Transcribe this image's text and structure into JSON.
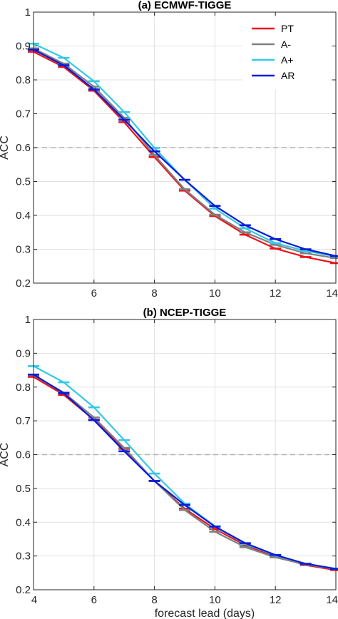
{
  "chart_data": [
    {
      "type": "line",
      "title": "(a) ECMWF-TIGGE",
      "xlabel": "",
      "ylabel": "ACC",
      "xlim": [
        4,
        14
      ],
      "ylim": [
        0.2,
        1.0
      ],
      "xticks": [
        4,
        6,
        8,
        10,
        12,
        14
      ],
      "xtick_labels": [
        "",
        "6",
        "8",
        "10",
        "12",
        "14"
      ],
      "yticks": [
        0.2,
        0.3,
        0.4,
        0.5,
        0.6,
        0.7,
        0.8,
        0.9,
        1.0
      ],
      "ytick_labels": [
        "0.2",
        "0.3",
        "0.4",
        "0.5",
        "0.6",
        "0.7",
        "0.8",
        "0.9",
        "1"
      ],
      "reference_line": 0.6,
      "grid": true,
      "legend": "top-right",
      "x": [
        4,
        5,
        6,
        7,
        8,
        9,
        10,
        11,
        12,
        13,
        14
      ],
      "series": [
        {
          "name": "PT",
          "color": "#e8151b",
          "values": [
            0.883,
            0.838,
            0.768,
            0.675,
            0.572,
            0.473,
            0.398,
            0.343,
            0.302,
            0.277,
            0.259
          ]
        },
        {
          "name": "A-",
          "color": "#808080",
          "values": [
            0.893,
            0.848,
            0.78,
            0.688,
            0.578,
            0.477,
            0.402,
            0.35,
            0.313,
            0.288,
            0.274
          ]
        },
        {
          "name": "A+",
          "color": "#35c8e6",
          "values": [
            0.907,
            0.865,
            0.796,
            0.705,
            0.599,
            0.505,
            0.42,
            0.362,
            0.318,
            0.295,
            0.279
          ]
        },
        {
          "name": "AR",
          "color": "#0a1bd9",
          "values": [
            0.889,
            0.843,
            0.772,
            0.682,
            0.589,
            0.505,
            0.428,
            0.371,
            0.33,
            0.3,
            0.28
          ]
        }
      ]
    },
    {
      "type": "line",
      "title": "(b) NCEP-TIGGE",
      "xlabel": "forecast lead (days)",
      "ylabel": "ACC",
      "xlim": [
        4,
        14
      ],
      "ylim": [
        0.2,
        1.0
      ],
      "xticks": [
        4,
        6,
        8,
        10,
        12,
        14
      ],
      "xtick_labels": [
        "4",
        "6",
        "8",
        "10",
        "12",
        "14"
      ],
      "yticks": [
        0.2,
        0.3,
        0.4,
        0.5,
        0.6,
        0.7,
        0.8,
        0.9,
        1.0
      ],
      "ytick_labels": [
        "0.2",
        "0.3",
        "0.4",
        "0.5",
        "0.6",
        "0.7",
        "0.8",
        "0.9",
        "1"
      ],
      "reference_line": 0.6,
      "grid": true,
      "legend": "none",
      "x": [
        4,
        5,
        6,
        7,
        8,
        9,
        10,
        11,
        12,
        13,
        14
      ],
      "series": [
        {
          "name": "PT",
          "color": "#e8151b",
          "values": [
            0.83,
            0.777,
            0.703,
            0.617,
            0.522,
            0.44,
            0.38,
            0.332,
            0.299,
            0.273,
            0.258
          ]
        },
        {
          "name": "A-",
          "color": "#808080",
          "values": [
            0.835,
            0.784,
            0.71,
            0.62,
            0.522,
            0.436,
            0.372,
            0.326,
            0.296,
            0.275,
            0.261
          ]
        },
        {
          "name": "A+",
          "color": "#35c8e6",
          "values": [
            0.862,
            0.814,
            0.74,
            0.643,
            0.544,
            0.455,
            0.388,
            0.336,
            0.302,
            0.277,
            0.262
          ]
        },
        {
          "name": "AR",
          "color": "#0a1bd9",
          "values": [
            0.837,
            0.782,
            0.702,
            0.61,
            0.522,
            0.451,
            0.387,
            0.338,
            0.303,
            0.277,
            0.262
          ]
        }
      ]
    }
  ]
}
